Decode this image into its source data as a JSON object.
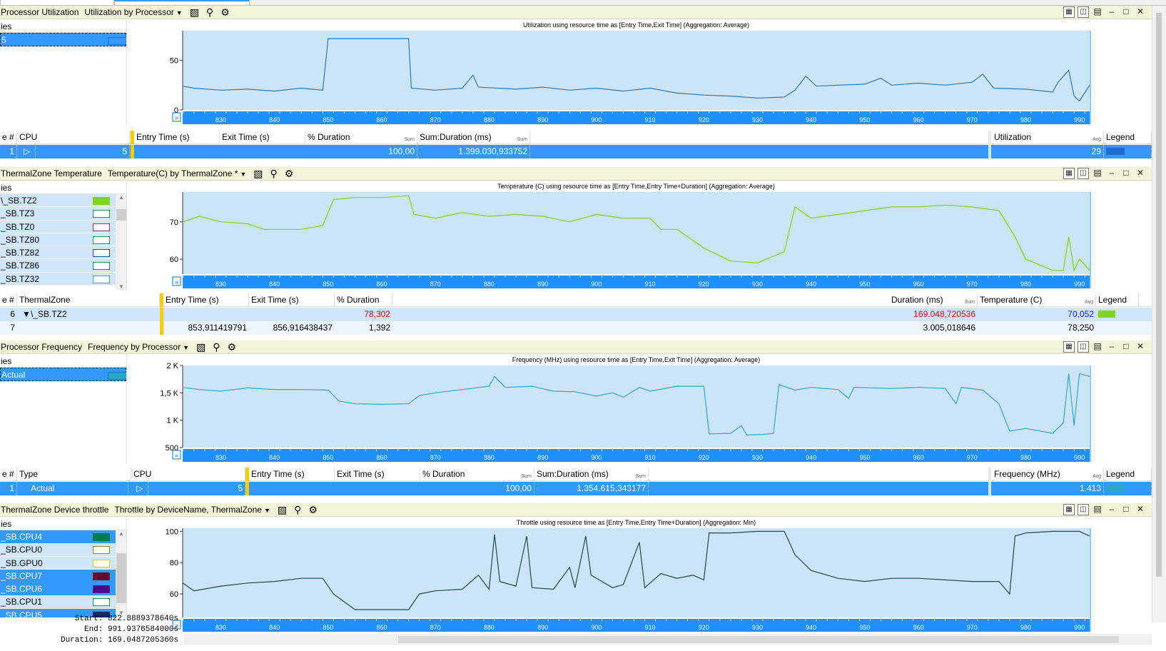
{
  "colors": {
    "plot_bg": "#cce4f7",
    "axis_blue": "#1e90ff",
    "header_bg": "#f3f3da",
    "select_blue": "#3399ff",
    "util_line": "#2b78b4",
    "temp_line": "#7fd21e",
    "freq_line": "#2aa6c8",
    "throttle_line": "#1e4b4b"
  },
  "icons": {
    "graph": "graph-icon",
    "search": "magnifier-icon",
    "settings": "gear-icon",
    "window": [
      "chart-view-icon",
      "graph-view-icon",
      "table-view-icon",
      "minimize-icon",
      "maximize-icon",
      "close-icon"
    ]
  },
  "panels": [
    {
      "title": "Processor Utilization",
      "preset": "Utilization by Processor",
      "series_header": "ies",
      "series": [
        {
          "name": "5",
          "selected": true,
          "color": "#3399ff"
        }
      ],
      "chart": {
        "title": "Utilization using resource time as [Entry Time,Exit Time] (Aggregation: Average)",
        "yticks": [
          {
            "v": 0,
            "l": "0"
          },
          {
            "v": 50,
            "l": "50"
          }
        ],
        "ymin": 0,
        "ymax": 80,
        "line": "#2b78b4",
        "points": [
          [
            822.9,
            24
          ],
          [
            825,
            22
          ],
          [
            830,
            20
          ],
          [
            835,
            21
          ],
          [
            840,
            19
          ],
          [
            845,
            22
          ],
          [
            849,
            20
          ],
          [
            850,
            72
          ],
          [
            855,
            72
          ],
          [
            860,
            72
          ],
          [
            865,
            72
          ],
          [
            865.5,
            22
          ],
          [
            870,
            20
          ],
          [
            875,
            22
          ],
          [
            877,
            35
          ],
          [
            878,
            23
          ],
          [
            885,
            21
          ],
          [
            890,
            23
          ],
          [
            895,
            20
          ],
          [
            900,
            22
          ],
          [
            905,
            19
          ],
          [
            910,
            22
          ],
          [
            915,
            17
          ],
          [
            920,
            15
          ],
          [
            925,
            14
          ],
          [
            930,
            12
          ],
          [
            935,
            13
          ],
          [
            937,
            20
          ],
          [
            939,
            34
          ],
          [
            941,
            24
          ],
          [
            945,
            25
          ],
          [
            950,
            26
          ],
          [
            953,
            32
          ],
          [
            955,
            25
          ],
          [
            960,
            27
          ],
          [
            965,
            25
          ],
          [
            970,
            28
          ],
          [
            972,
            36
          ],
          [
            974,
            22
          ],
          [
            980,
            21
          ],
          [
            985,
            18
          ],
          [
            986,
            28
          ],
          [
            988,
            40
          ],
          [
            989,
            14
          ],
          [
            990,
            9
          ],
          [
            991.9,
            25
          ]
        ]
      },
      "xticks": [
        "830",
        "840",
        "850",
        "860",
        "870",
        "880",
        "890",
        "900",
        "910",
        "920",
        "930",
        "940",
        "950",
        "960",
        "970",
        "980",
        "990"
      ],
      "table": {
        "cols": [
          "e #",
          "CPU",
          "Entry Time (s)",
          "Exit Time (s)",
          "% Duration",
          "Sum:Duration (ms)",
          "Utilization",
          "Legend"
        ],
        "sub": {
          "pct": "Sum",
          "sum": "Sum",
          "util": "Avg"
        },
        "rows": [
          {
            "idx": "1",
            "cpu": "5",
            "pct": "100,00",
            "sum": "1.399.030,933752",
            "util": "29"
          }
        ]
      }
    },
    {
      "title": "ThermalZone Temperature",
      "preset": "Temperature(C) by ThermalZone *",
      "series_header": "ies",
      "series": [
        {
          "name": "\\_SB.TZ2",
          "color": "#7fd21e",
          "fill": true
        },
        {
          "name": "_SB.TZ3",
          "color": "#2e8b57"
        },
        {
          "name": "_SB.TZ0",
          "color": "#8b3a62"
        },
        {
          "name": "_SB.TZ80",
          "color": "#2e8b57"
        },
        {
          "name": "_SB.TZ82",
          "color": "#1e4ba0"
        },
        {
          "name": "_SB.TZ86",
          "color": "#2e8b57"
        },
        {
          "name": "_SB.TZ32",
          "color": "#5a9bd5"
        }
      ],
      "chart": {
        "title": "Temperature (C) using resource time as [Entry Time,Entry Time+Duration] (Aggregation: Average)",
        "yticks": [
          {
            "v": 60,
            "l": "60"
          },
          {
            "v": 70,
            "l": "70"
          }
        ],
        "ymin": 56,
        "ymax": 78,
        "line": "#7fd21e",
        "points": [
          [
            822.9,
            70
          ],
          [
            826,
            71.5
          ],
          [
            830,
            70
          ],
          [
            835,
            69.5
          ],
          [
            838,
            68
          ],
          [
            845,
            68
          ],
          [
            849,
            69
          ],
          [
            851,
            76
          ],
          [
            855,
            76.5
          ],
          [
            860,
            76.5
          ],
          [
            865,
            77
          ],
          [
            866,
            72
          ],
          [
            870,
            71
          ],
          [
            875,
            72.5
          ],
          [
            880,
            71.5
          ],
          [
            885,
            72
          ],
          [
            890,
            71.5
          ],
          [
            895,
            70
          ],
          [
            900,
            72
          ],
          [
            905,
            71
          ],
          [
            910,
            71
          ],
          [
            912,
            68
          ],
          [
            915,
            68
          ],
          [
            920,
            63
          ],
          [
            925,
            59.5
          ],
          [
            930,
            59
          ],
          [
            935,
            62
          ],
          [
            937,
            74
          ],
          [
            940,
            71
          ],
          [
            945,
            72
          ],
          [
            950,
            73
          ],
          [
            955,
            74
          ],
          [
            960,
            74
          ],
          [
            965,
            74.5
          ],
          [
            970,
            74
          ],
          [
            975,
            73
          ],
          [
            978,
            66
          ],
          [
            980,
            60
          ],
          [
            985,
            57
          ],
          [
            987,
            57
          ],
          [
            988,
            66
          ],
          [
            989,
            57
          ],
          [
            990,
            60
          ],
          [
            991.9,
            57
          ]
        ]
      },
      "xticks": [
        "830",
        "840",
        "850",
        "860",
        "870",
        "880",
        "890",
        "900",
        "910",
        "920",
        "930",
        "940",
        "950",
        "960",
        "970",
        "980",
        "990"
      ],
      "table": {
        "cols": [
          "e #",
          "ThermalZone",
          "Entry Time (s)",
          "Exit Time (s)",
          "% Duration",
          "Duration (ms)",
          "Temperature (C)",
          "Legend"
        ],
        "sub": {
          "dur": "Sum",
          "temp": "Avg"
        },
        "rows": [
          {
            "idx": "6",
            "zone": "\\_SB.TZ2",
            "entry": "",
            "exit": "",
            "pct": "78,302",
            "dur": "169.048,720536",
            "temp": "70,052"
          },
          {
            "idx": "7",
            "zone": "",
            "entry": "853,911419791",
            "exit": "856,916438437",
            "pct": "1,392",
            "dur": "3.005,018646",
            "temp": "78,250"
          }
        ]
      }
    },
    {
      "title": "Processor Frequency",
      "preset": "Frequency by Processor",
      "series_header": "ies",
      "series": [
        {
          "name": "Actual",
          "selected": true,
          "color": "#2aa6c8"
        }
      ],
      "chart": {
        "title": "Frequency (MHz) using resource time as [Entry Time,Exit Time] (Aggregation: Average)",
        "yticks": [
          {
            "v": 500,
            "l": "500"
          },
          {
            "v": 1000,
            "l": "1 K"
          },
          {
            "v": 1500,
            "l": "1,5 K"
          },
          {
            "v": 2000,
            "l": "2 K"
          }
        ],
        "ymin": 500,
        "ymax": 2000,
        "line": "#2aa6c8",
        "points": [
          [
            822.9,
            1600
          ],
          [
            826,
            1560
          ],
          [
            830,
            1530
          ],
          [
            835,
            1590
          ],
          [
            840,
            1560
          ],
          [
            845,
            1560
          ],
          [
            850,
            1550
          ],
          [
            852,
            1350
          ],
          [
            855,
            1300
          ],
          [
            860,
            1290
          ],
          [
            865,
            1300
          ],
          [
            867,
            1450
          ],
          [
            870,
            1500
          ],
          [
            875,
            1560
          ],
          [
            880,
            1620
          ],
          [
            881,
            1800
          ],
          [
            883,
            1600
          ],
          [
            888,
            1620
          ],
          [
            892,
            1530
          ],
          [
            896,
            1520
          ],
          [
            900,
            1440
          ],
          [
            903,
            1500
          ],
          [
            905,
            1420
          ],
          [
            908,
            1600
          ],
          [
            910,
            1530
          ],
          [
            915,
            1620
          ],
          [
            920,
            1620
          ],
          [
            921,
            750
          ],
          [
            925,
            760
          ],
          [
            927,
            900
          ],
          [
            928,
            730
          ],
          [
            931,
            740
          ],
          [
            933,
            760
          ],
          [
            934,
            1650
          ],
          [
            937,
            1550
          ],
          [
            940,
            1600
          ],
          [
            945,
            1560
          ],
          [
            947,
            1400
          ],
          [
            948,
            1600
          ],
          [
            955,
            1580
          ],
          [
            960,
            1600
          ],
          [
            965,
            1580
          ],
          [
            967,
            1300
          ],
          [
            968,
            1600
          ],
          [
            972,
            1550
          ],
          [
            975,
            1300
          ],
          [
            977,
            800
          ],
          [
            980,
            850
          ],
          [
            985,
            760
          ],
          [
            987,
            950
          ],
          [
            988,
            1850
          ],
          [
            989,
            900
          ],
          [
            990,
            1850
          ],
          [
            991.9,
            1800
          ]
        ]
      },
      "xticks": [
        "830",
        "840",
        "850",
        "860",
        "870",
        "880",
        "890",
        "900",
        "910",
        "920",
        "930",
        "940",
        "950",
        "960",
        "970",
        "980",
        "990"
      ],
      "table": {
        "cols": [
          "e #",
          "Type",
          "CPU",
          "Entry Time (s)",
          "Exit Time (s)",
          "% Duration",
          "Sum:Duration (ms)",
          "Frequency (MHz)",
          "Legend"
        ],
        "sub": {
          "pct": "Sum",
          "sum": "Sum",
          "freq": "Avg"
        },
        "rows": [
          {
            "idx": "1",
            "type": "Actual",
            "cpu": "5",
            "pct": "100,00",
            "sum": "1.354.615,343177",
            "freq": "1.413"
          }
        ]
      }
    },
    {
      "title": "ThermalZone Device throttle",
      "preset": "Throttle by DeviceName, ThermalZone",
      "series_header": "ies",
      "series": [
        {
          "name": "_SB.CPU4",
          "color": "#0a7a55",
          "fill": true,
          "selected": true
        },
        {
          "name": "_SB.CPU0",
          "color": "#8a8a3a"
        },
        {
          "name": "_SB.GPU0",
          "color": "#cccc55"
        },
        {
          "name": "_SB.CPU7",
          "color": "#6a0a2a",
          "fill": true,
          "selected": true
        },
        {
          "name": "_SB.CPU6",
          "color": "#4a0a8a",
          "fill": true,
          "selected": true
        },
        {
          "name": "_SB.CPU1",
          "color": "#2e8b57"
        },
        {
          "name": "_SB.CPU5",
          "color": "#0a2a6a",
          "fill": true,
          "selected": true
        }
      ],
      "chart": {
        "title": "Throttle using resource time as [Entry Time,Entry Time+Duration] (Aggregation: Min)",
        "yticks": [
          {
            "v": 60,
            "l": "60"
          },
          {
            "v": 80,
            "l": "80"
          },
          {
            "v": 100,
            "l": "100"
          }
        ],
        "ymin": 45,
        "ymax": 102,
        "line": "#1e4b4b",
        "points": [
          [
            822.9,
            67
          ],
          [
            825,
            62
          ],
          [
            830,
            65
          ],
          [
            835,
            67
          ],
          [
            840,
            68
          ],
          [
            845,
            70
          ],
          [
            849,
            70
          ],
          [
            851,
            60
          ],
          [
            855,
            50
          ],
          [
            860,
            50
          ],
          [
            865,
            50
          ],
          [
            867,
            60
          ],
          [
            870,
            62
          ],
          [
            875,
            63
          ],
          [
            878,
            72
          ],
          [
            880,
            63
          ],
          [
            881,
            98
          ],
          [
            882,
            68
          ],
          [
            885,
            65
          ],
          [
            887,
            97
          ],
          [
            888,
            64
          ],
          [
            892,
            63
          ],
          [
            895,
            77
          ],
          [
            896,
            64
          ],
          [
            898,
            97
          ],
          [
            899,
            72
          ],
          [
            903,
            64
          ],
          [
            905,
            66
          ],
          [
            908,
            93
          ],
          [
            909,
            64
          ],
          [
            912,
            73
          ],
          [
            915,
            70
          ],
          [
            918,
            72
          ],
          [
            920,
            69
          ],
          [
            921,
            99
          ],
          [
            925,
            99
          ],
          [
            930,
            100
          ],
          [
            935,
            100
          ],
          [
            937,
            85
          ],
          [
            940,
            75
          ],
          [
            945,
            70
          ],
          [
            950,
            68
          ],
          [
            955,
            70
          ],
          [
            960,
            70
          ],
          [
            965,
            69
          ],
          [
            970,
            68
          ],
          [
            975,
            68
          ],
          [
            977,
            60
          ],
          [
            978,
            97
          ],
          [
            980,
            99
          ],
          [
            985,
            100
          ],
          [
            990,
            100
          ],
          [
            991.9,
            97
          ]
        ]
      },
      "xticks": [
        "830",
        "840",
        "850",
        "860",
        "870",
        "880",
        "890",
        "900",
        "910",
        "920",
        "930",
        "940",
        "950",
        "960",
        "970",
        "980",
        "990"
      ]
    }
  ],
  "footer": {
    "start": "Start: 822.8889378640s",
    "end": "End: 991.9376584000s",
    "duration": "Duration: 169.0487205360s"
  }
}
